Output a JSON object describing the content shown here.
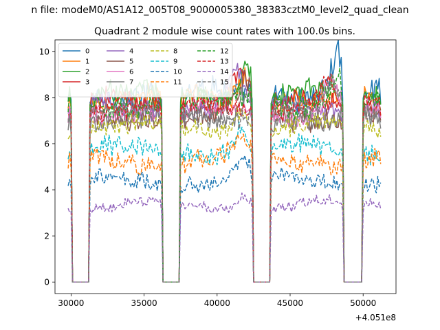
{
  "chart_data": {
    "type": "line",
    "suptitle": "n file: modeM0/AS1A12_005T08_9000005380_38383cztM0_level2_quad_clean",
    "title": "Quadrant 2 module wise count rates with 100.0s bins.",
    "xlabel": "",
    "ylabel": "",
    "offset_text": "+4.051e8",
    "xlim": [
      28900,
      52250
    ],
    "ylim": [
      -0.5,
      10.5
    ],
    "x_ticks": [
      30000,
      35000,
      40000,
      45000,
      50000
    ],
    "x_tick_labels": [
      "30000",
      "35000",
      "40000",
      "45000",
      "50000"
    ],
    "y_ticks": [
      0,
      2,
      4,
      6,
      8,
      10
    ],
    "y_tick_labels": [
      "0",
      "2",
      "4",
      "6",
      "8",
      "10"
    ],
    "segments": [
      [
        29800,
        30000
      ],
      [
        31300,
        36200
      ],
      [
        37500,
        42400
      ],
      [
        43700,
        48600
      ],
      [
        50000,
        51200
      ]
    ],
    "gaps": [
      [
        30100,
        31200
      ],
      [
        36300,
        37400
      ],
      [
        42500,
        43600
      ],
      [
        48700,
        49900
      ]
    ],
    "bin_width": 100,
    "legend_position": "upper-left",
    "series": [
      {
        "name": "0",
        "color": "#1f77b4",
        "style": "solid",
        "level": 8.2,
        "noise": 0.45,
        "peak": 10.0,
        "peak_x": 48300
      },
      {
        "name": "1",
        "color": "#ff7f0e",
        "style": "solid",
        "level": 7.9,
        "noise": 0.4,
        "peak": 9.3,
        "peak_x": 41800
      },
      {
        "name": "2",
        "color": "#2ca02c",
        "style": "solid",
        "level": 8.1,
        "noise": 0.45,
        "peak": 9.9,
        "peak_x": 42100
      },
      {
        "name": "3",
        "color": "#d62728",
        "style": "solid",
        "level": 7.7,
        "noise": 0.4,
        "peak": 9.4,
        "peak_x": 41500
      },
      {
        "name": "4",
        "color": "#9467bd",
        "style": "solid",
        "level": 7.6,
        "noise": 0.4,
        "peak": 9.2,
        "peak_x": 41200
      },
      {
        "name": "5",
        "color": "#8c564b",
        "style": "solid",
        "level": 7.2,
        "noise": 0.4,
        "peak": 8.7,
        "peak_x": 41900
      },
      {
        "name": "6",
        "color": "#e377c2",
        "style": "solid",
        "level": 7.4,
        "noise": 0.35,
        "peak": 8.9,
        "peak_x": 47800
      },
      {
        "name": "7",
        "color": "#7f7f7f",
        "style": "solid",
        "level": 7.0,
        "noise": 0.4,
        "peak": 8.5,
        "peak_x": 42000
      },
      {
        "name": "8",
        "color": "#bcbd22",
        "style": "dashed",
        "level": 6.7,
        "noise": 0.35,
        "peak": 7.6,
        "peak_x": 41700
      },
      {
        "name": "9",
        "color": "#17becf",
        "style": "dashed",
        "level": 5.7,
        "noise": 0.35,
        "peak": 6.9,
        "peak_x": 41600
      },
      {
        "name": "10",
        "color": "#1f77b4",
        "style": "dashed",
        "level": 4.4,
        "noise": 0.3,
        "peak": 5.3,
        "peak_x": 41800
      },
      {
        "name": "11",
        "color": "#ff7f0e",
        "style": "dashed",
        "level": 5.3,
        "noise": 0.35,
        "peak": 6.1,
        "peak_x": 41500
      },
      {
        "name": "12",
        "color": "#2ca02c",
        "style": "dashed",
        "level": 7.8,
        "noise": 0.4,
        "peak": 9.0,
        "peak_x": 48200
      },
      {
        "name": "13",
        "color": "#d62728",
        "style": "dashed",
        "level": 7.6,
        "noise": 0.35,
        "peak": 8.8,
        "peak_x": 47500
      },
      {
        "name": "14",
        "color": "#9467bd",
        "style": "dashed",
        "level": 3.3,
        "noise": 0.2,
        "peak": 4.0,
        "peak_x": 41900
      },
      {
        "name": "15",
        "color": "#7f7f7f",
        "style": "dashed",
        "level": 7.3,
        "noise": 0.35,
        "peak": 8.6,
        "peak_x": 47900
      }
    ]
  }
}
